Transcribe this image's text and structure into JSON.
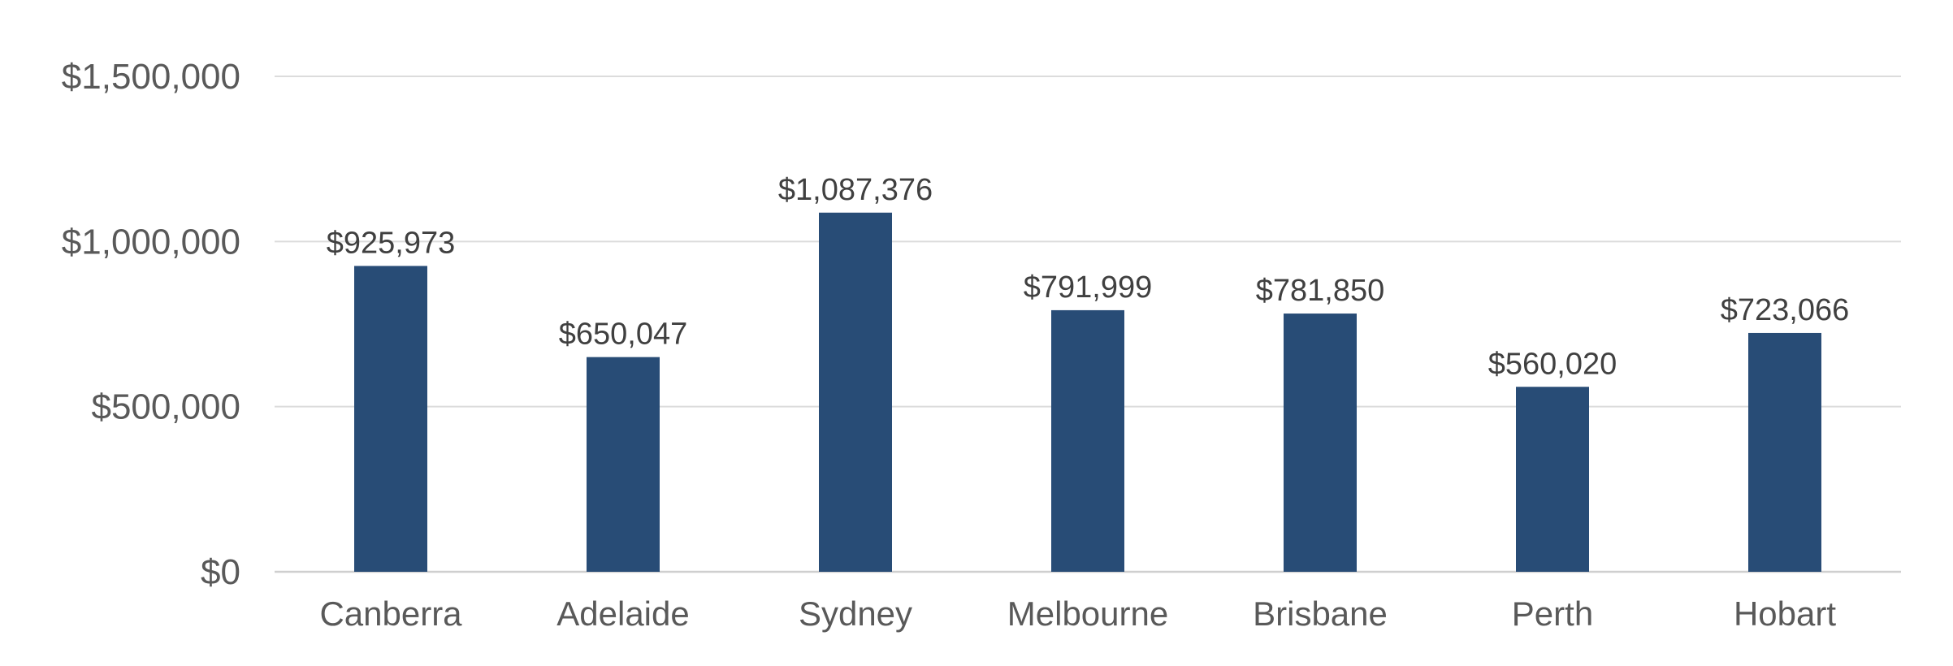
{
  "chart_data": {
    "type": "bar",
    "title": "",
    "xlabel": "",
    "ylabel": "",
    "categories": [
      "Canberra",
      "Adelaide",
      "Sydney",
      "Melbourne",
      "Brisbane",
      "Perth",
      "Hobart"
    ],
    "values": [
      925973,
      650047,
      1087376,
      791999,
      781850,
      560020,
      723066
    ],
    "data_labels": [
      "$925,973",
      "$650,047",
      "$1,087,376",
      "$791,999",
      "$781,850",
      "$560,020",
      "$723,066"
    ],
    "ylim": [
      0,
      1500000
    ],
    "y_ticks": [
      {
        "value": 0,
        "label": "$0"
      },
      {
        "value": 500000,
        "label": "$500,000"
      },
      {
        "value": 1000000,
        "label": "$1,000,000"
      },
      {
        "value": 1500000,
        "label": "$1,500,000"
      }
    ],
    "grid": true,
    "legend": "none",
    "colors": {
      "bar": "#284c76",
      "gridline": "#dcdcdc",
      "axis_text": "#595959",
      "label_text": "#404040"
    }
  }
}
